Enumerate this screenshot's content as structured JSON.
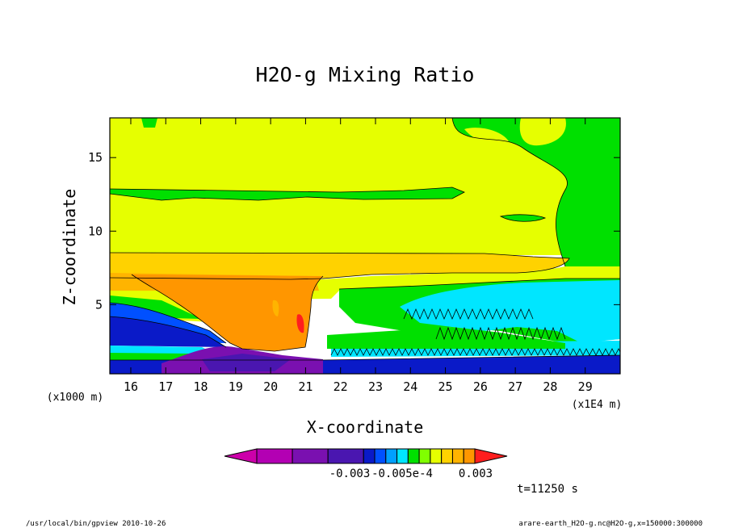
{
  "chart_data": {
    "type": "heatmap",
    "title": "H2O-g Mixing Ratio",
    "xlabel": "X-coordinate",
    "ylabel": "Z-coordinate",
    "x_unit_label": "(x1E4 m)",
    "y_unit_label": "(x1000 m)",
    "xlim": [
      15.4,
      30.0
    ],
    "ylim": [
      0.3,
      17.7
    ],
    "x_ticks": [
      "16",
      "17",
      "18",
      "19",
      "20",
      "21",
      "22",
      "23",
      "24",
      "25",
      "26",
      "27",
      "28",
      "29"
    ],
    "y_ticks": [
      "5",
      "10",
      "15"
    ],
    "colorbar": {
      "colors": [
        "#cc00aa",
        "#b300b3",
        "#7a10b0",
        "#4a16b0",
        "#0a1ac8",
        "#0050ff",
        "#00a0ff",
        "#00e6ff",
        "#00e000",
        "#80ff00",
        "#e6ff00",
        "#ffd200",
        "#ffb400",
        "#ff9600",
        "#ff1e1e"
      ],
      "labels": [
        "-0.003",
        "-0.005e-4",
        "0.003"
      ]
    },
    "time_label": "t=11250 s"
  },
  "footer": {
    "left": "/usr/local/bin/gpview  2010-10-26",
    "right": "arare-earth_H2O-g.nc@H2O-g,x=150000:300000"
  }
}
